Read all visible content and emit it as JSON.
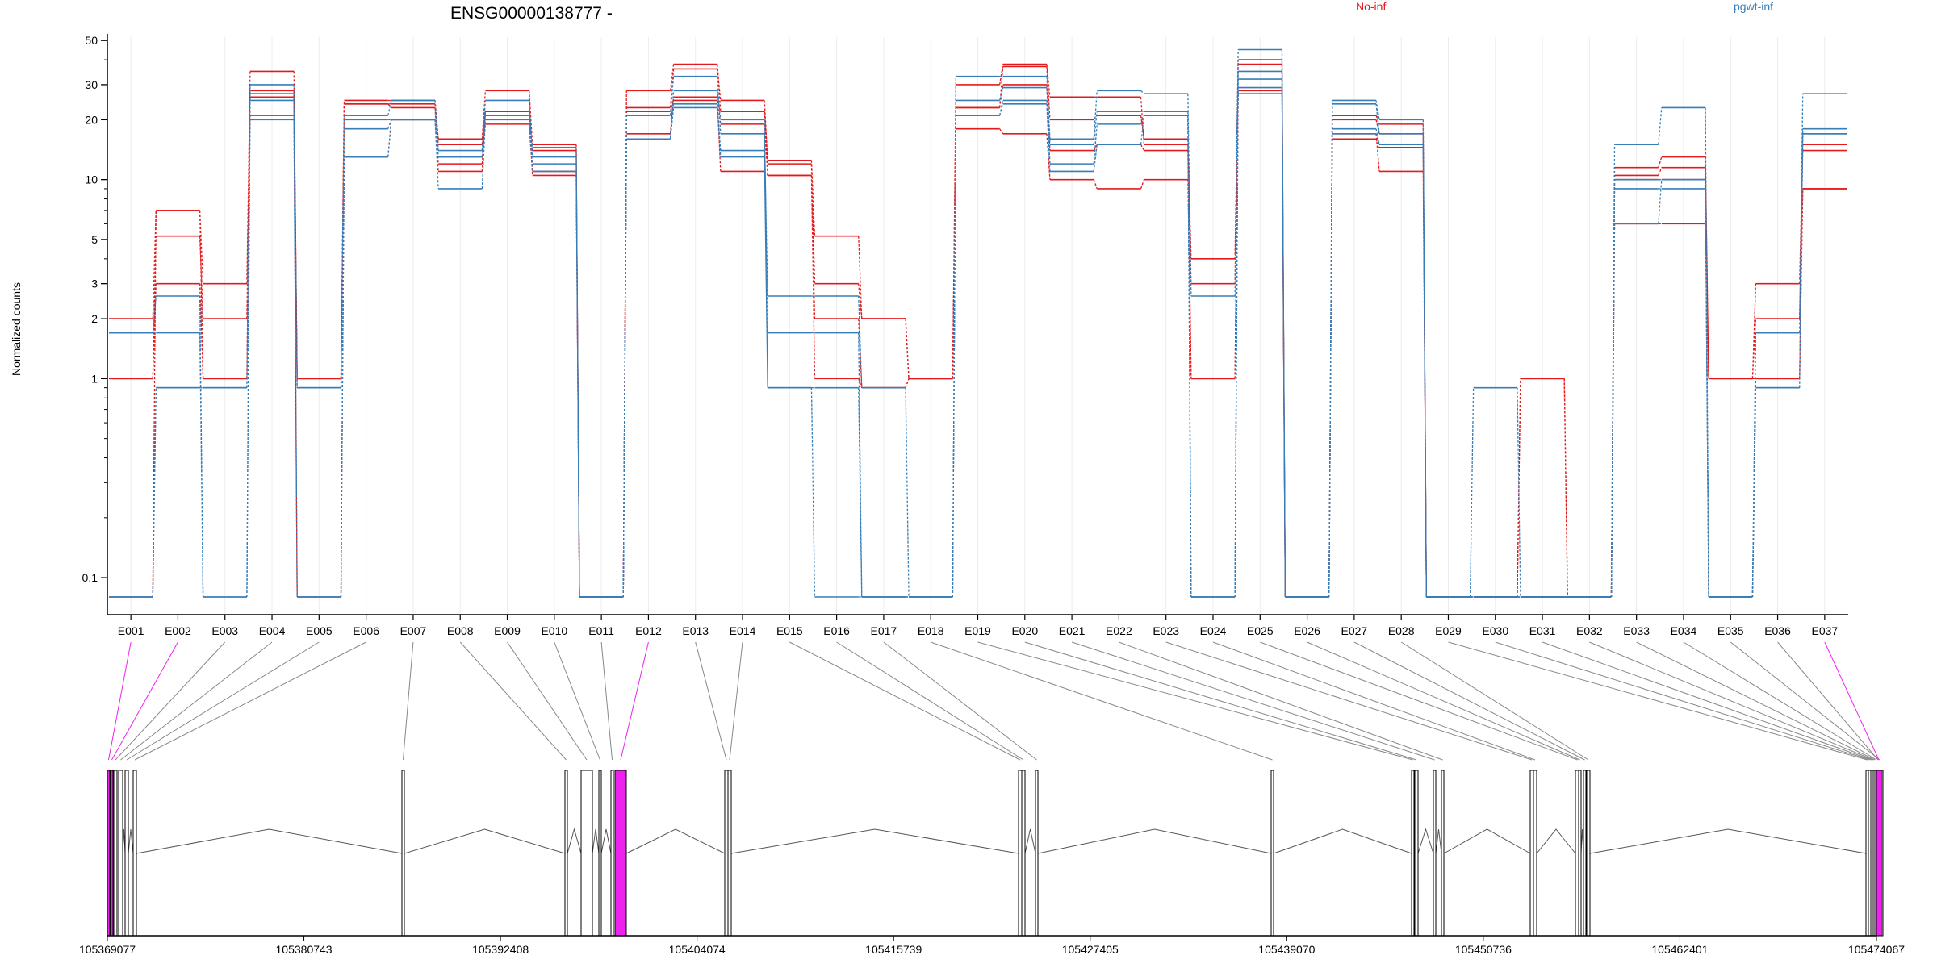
{
  "chart_data": {
    "type": "line",
    "title": "ENSG00000138777 -",
    "ylabel": "Normalized counts",
    "yscale": "log",
    "ylim": [
      0.08,
      52
    ],
    "y_ticks": [
      0.1,
      1,
      2,
      3,
      5,
      10,
      20,
      30,
      50
    ],
    "grid": "vertical only",
    "legend_placement": "top-right",
    "categories": [
      "E001",
      "E002",
      "E003",
      "E004",
      "E005",
      "E006",
      "E007",
      "E008",
      "E009",
      "E010",
      "E011",
      "E012",
      "E013",
      "E014",
      "E015",
      "E016",
      "E017",
      "E018",
      "E019",
      "E020",
      "E021",
      "E022",
      "E023",
      "E024",
      "E025",
      "E026",
      "E027",
      "E028",
      "E029",
      "E030",
      "E031",
      "E032",
      "E033",
      "E034",
      "E035",
      "E036",
      "E037"
    ],
    "series": [
      {
        "name": "No-inf",
        "color": "#e31a1c",
        "values": [
          2.0,
          7.0,
          3.0,
          35.0,
          1.0,
          25.0,
          25.0,
          16.0,
          28.0,
          15.0,
          0.08,
          28.0,
          38.0,
          22.0,
          12.5,
          5.2,
          2.0,
          1.0,
          30.0,
          38.0,
          26.0,
          26.0,
          15.0,
          4.0,
          40.0,
          0.08,
          21.0,
          19.0,
          0.08,
          0.08,
          1.0,
          0.08,
          11.5,
          13.0,
          1.0,
          3.0,
          15.0
        ]
      },
      {
        "name": "No-inf",
        "color": "#e31a1c",
        "values": [
          1.0,
          5.2,
          2.0,
          28.0,
          1.0,
          24.0,
          24.0,
          15.0,
          22.0,
          14.0,
          0.08,
          23.0,
          36.0,
          25.0,
          12.0,
          3.0,
          2.0,
          1.0,
          23.0,
          37.0,
          20.0,
          21.0,
          16.0,
          3.0,
          38.0,
          0.08,
          20.0,
          17.0,
          0.08,
          0.08,
          1.0,
          0.08,
          10.5,
          11.5,
          1.0,
          2.0,
          14.0
        ]
      },
      {
        "name": "No-inf",
        "color": "#e31a1c",
        "values": [
          1.0,
          3.0,
          1.0,
          27.0,
          1.0,
          24.0,
          23.0,
          12.0,
          19.0,
          11.0,
          0.08,
          22.0,
          25.0,
          11.0,
          10.5,
          2.0,
          0.9,
          1.0,
          18.0,
          17.0,
          10.0,
          9.0,
          10.0,
          1.0,
          28.0,
          0.08,
          17.0,
          11.0,
          0.08,
          0.08,
          0.08,
          0.08,
          6.0,
          6.0,
          1.0,
          1.0,
          9.0
        ]
      },
      {
        "name": "No-inf",
        "color": "#e31a1c",
        "values": [
          0.08,
          7.0,
          1.0,
          26.0,
          0.08,
          13.0,
          20.0,
          11.0,
          22.0,
          10.5,
          0.08,
          17.0,
          26.0,
          19.0,
          10.5,
          1.0,
          0.9,
          1.0,
          23.0,
          30.0,
          14.0,
          15.0,
          14.0,
          1.0,
          27.0,
          0.08,
          16.0,
          14.5,
          0.08,
          0.08,
          0.08,
          0.08,
          10.0,
          10.0,
          0.08,
          1.0,
          9.0
        ]
      },
      {
        "name": "pgwt-inf",
        "color": "#377eb8",
        "values": [
          1.7,
          1.7,
          0.08,
          30.0,
          0.9,
          21.0,
          25.0,
          14.0,
          25.0,
          13.0,
          0.08,
          21.0,
          33.0,
          17.0,
          2.6,
          2.6,
          0.9,
          0.08,
          33.0,
          33.0,
          16.0,
          28.0,
          27.0,
          2.6,
          45.0,
          0.08,
          25.0,
          20.0,
          0.08,
          0.9,
          0.08,
          0.08,
          15.0,
          23.0,
          0.08,
          1.7,
          27.0
        ]
      },
      {
        "name": "pgwt-inf",
        "color": "#377eb8",
        "values": [
          1.7,
          2.6,
          0.08,
          25.0,
          0.9,
          20.0,
          20.0,
          13.0,
          21.0,
          12.0,
          0.08,
          16.0,
          28.0,
          20.0,
          1.7,
          1.7,
          0.08,
          0.08,
          25.0,
          29.0,
          15.0,
          22.0,
          22.0,
          0.08,
          35.0,
          0.08,
          24.0,
          17.0,
          0.08,
          0.08,
          0.08,
          0.08,
          10.0,
          10.0,
          0.08,
          1.7,
          17.0
        ]
      },
      {
        "name": "pgwt-inf",
        "color": "#377eb8",
        "values": [
          0.08,
          0.9,
          0.9,
          21.0,
          0.08,
          18.0,
          20.0,
          9.0,
          20.0,
          11.0,
          0.08,
          16.0,
          23.0,
          14.0,
          0.9,
          0.9,
          0.08,
          0.08,
          21.0,
          25.0,
          12.0,
          19.0,
          21.0,
          0.08,
          32.0,
          0.08,
          18.0,
          15.0,
          0.08,
          0.08,
          0.08,
          0.08,
          9.0,
          9.0,
          0.08,
          0.9,
          18.0
        ]
      },
      {
        "name": "pgwt-inf",
        "color": "#377eb8",
        "values": [
          0.08,
          0.9,
          0.9,
          20.0,
          0.08,
          13.0,
          20.0,
          13.0,
          21.0,
          14.5,
          0.08,
          16.0,
          24.0,
          13.0,
          0.9,
          0.08,
          0.08,
          0.08,
          21.0,
          24.0,
          11.0,
          15.0,
          21.0,
          0.08,
          29.0,
          0.08,
          17.0,
          15.0,
          0.08,
          0.08,
          0.08,
          0.08,
          6.0,
          10.0,
          0.08,
          0.9,
          17.0
        ]
      }
    ],
    "legend": [
      {
        "label": "No-inf",
        "color": "#e31a1c"
      },
      {
        "label": "pgwt-inf",
        "color": "#377eb8"
      }
    ],
    "gene_model": {
      "coordinate_ticks": [
        "105369077",
        "105380743",
        "105392408",
        "105404074",
        "105415739",
        "105427405",
        "105439070",
        "105450736",
        "105462401",
        "105474067"
      ],
      "highlight_color": "#ee22ee",
      "exon_fill_color": "#ffffff",
      "exon_gray_color": "#bbbbbb"
    }
  }
}
